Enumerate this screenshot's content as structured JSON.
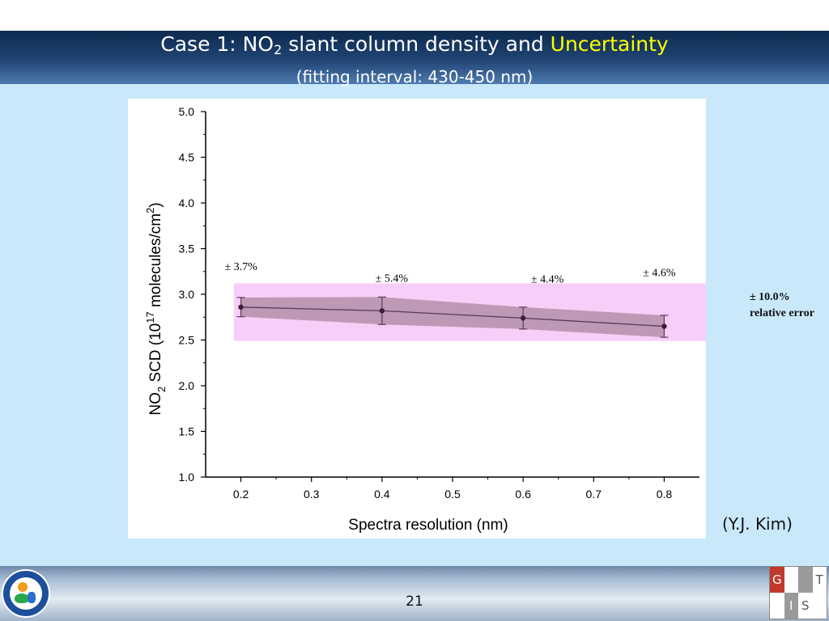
{
  "slide": {
    "title_part1": "Case 1: NO",
    "title_sub": "2",
    "title_part2": " slant column density and ",
    "title_highlight": "Uncertainty",
    "subtitle": "(fitting interval: 430-450 nm)",
    "credit": "(Y.J. Kim)",
    "relative_error_value": "± 10.0%",
    "relative_error_label": "relative error",
    "page_number": "21",
    "logo_right_letters": [
      "G",
      "I",
      "S",
      "T"
    ],
    "highlight_color": "#ffff00"
  },
  "chart_data": {
    "type": "line",
    "xlabel": "Spectra resolution (nm)",
    "ylabel_main": "NO",
    "ylabel_sub": "2",
    "ylabel_rest1": " SCD (10",
    "ylabel_sup1": "17",
    "ylabel_rest2": " molecules/cm",
    "ylabel_sup2": "2",
    "ylabel_end": ")",
    "xlim": [
      0.15,
      0.85
    ],
    "ylim": [
      1.0,
      5.0
    ],
    "x_ticks": [
      "0.2",
      "0.3",
      "0.4",
      "0.5",
      "0.6",
      "0.7",
      "0.8"
    ],
    "y_ticks": [
      "1.0",
      "1.5",
      "2.0",
      "2.5",
      "3.0",
      "3.5",
      "4.0",
      "4.5",
      "5.0"
    ],
    "x": [
      0.2,
      0.4,
      0.6,
      0.8
    ],
    "y": [
      2.86,
      2.82,
      2.74,
      2.65
    ],
    "error": [
      0.105,
      0.15,
      0.12,
      0.12
    ],
    "point_labels": [
      "± 3.7%",
      "± 5.4%",
      "± 4.4%",
      "± 4.6%"
    ],
    "band_range": [
      2.49,
      3.12
    ],
    "band_color": "#f7c6f7",
    "shade_color": "#b38fa9",
    "line_color": "#5a3a55"
  }
}
